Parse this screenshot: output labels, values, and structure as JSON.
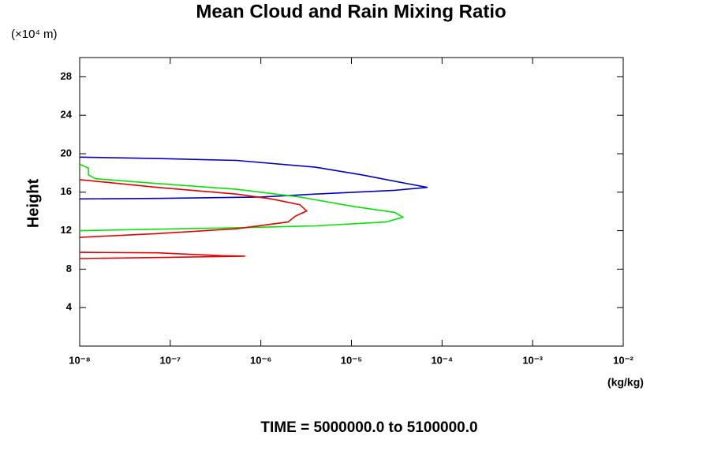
{
  "chart_data": {
    "type": "line",
    "title": "Mean Cloud and Rain Mixing Ratio",
    "y_unit_label": "(×10⁴ m)",
    "y_label": "Height",
    "x_unit_label": "(kg/kg)",
    "footer": "TIME = 5000000.0 to 5100000.0",
    "xscale": "log",
    "xlim": [
      1e-08,
      0.01
    ],
    "ylim": [
      0,
      30
    ],
    "xticks": [
      {
        "value": 1e-08,
        "label": "10⁻⁸"
      },
      {
        "value": 1e-07,
        "label": "10⁻⁷"
      },
      {
        "value": 1e-06,
        "label": "10⁻⁶"
      },
      {
        "value": 1e-05,
        "label": "10⁻⁵"
      },
      {
        "value": 0.0001,
        "label": "10⁻⁴"
      },
      {
        "value": 0.001,
        "label": "10⁻³"
      },
      {
        "value": 0.01,
        "label": "10⁻²"
      }
    ],
    "yticks": [
      4,
      8,
      12,
      16,
      20,
      24,
      28
    ],
    "series": [
      {
        "color": "#0000c8",
        "x": [
          1e-08,
          7.2e-08,
          5.4e-07,
          4e-06,
          1.3e-05,
          3.6e-05,
          6.9e-05,
          3e-05,
          4e-06,
          1e-06,
          7.2e-08,
          1e-08
        ],
        "values": [
          19.65,
          19.5,
          19.3,
          18.6,
          17.8,
          17.0,
          16.5,
          16.2,
          15.8,
          15.5,
          15.35,
          15.3
        ]
      },
      {
        "color": "#00e600",
        "x": [
          1e-08,
          1.25e-08,
          1.25e-08,
          1.5e-08,
          7.2e-08,
          5.4e-07,
          2.7e-06,
          1.07e-05,
          3e-05,
          3.7e-05,
          2.4e-05,
          4e-06,
          5.4e-07,
          1e-08
        ],
        "values": [
          18.9,
          18.5,
          17.8,
          17.4,
          16.9,
          16.3,
          15.5,
          14.5,
          13.9,
          13.4,
          12.9,
          12.5,
          12.3,
          12.0
        ]
      },
      {
        "color": "#e60000",
        "x": [
          1e-08,
          7.2e-08,
          5.4e-07,
          1.3e-06,
          2.7e-06,
          3.2e-06,
          2.4e-06,
          2e-06,
          5.4e-07,
          7.2e-08,
          1e-08,
          null,
          1e-08,
          7.2e-08,
          3.6e-07,
          6.7e-07,
          1.6e-07,
          1e-08
        ],
        "values": [
          17.3,
          16.5,
          15.8,
          15.3,
          14.7,
          14.05,
          13.5,
          12.9,
          12.2,
          11.7,
          11.3,
          null,
          9.75,
          9.7,
          9.4,
          9.35,
          9.25,
          9.1
        ]
      }
    ]
  }
}
